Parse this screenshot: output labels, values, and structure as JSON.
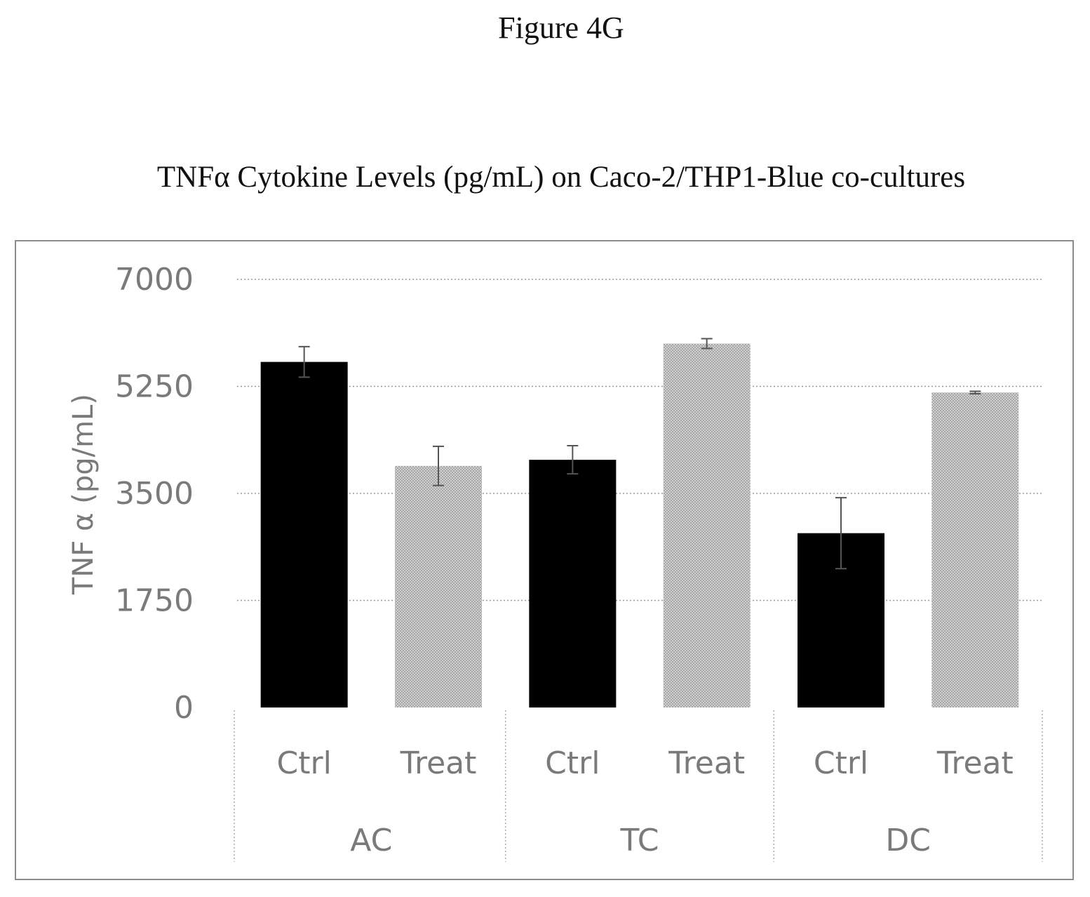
{
  "figure_label": "Figure 4G",
  "chart_data": {
    "type": "bar",
    "title": "TNFα Cytokine Levels (pg/mL) on Caco-2/THP1-Blue co-cultures",
    "xlabel": "",
    "ylabel": "TNF α (pg/mL)",
    "ylim": [
      0,
      7000
    ],
    "yticks": [
      0,
      1750,
      3500,
      5250,
      7000
    ],
    "grid": true,
    "legend": "none",
    "groups": [
      "AC",
      "TC",
      "DC"
    ],
    "categories": [
      "Ctrl",
      "Treat",
      "Ctrl",
      "Treat",
      "Ctrl",
      "Treat"
    ],
    "values": [
      5650,
      3950,
      4050,
      5950,
      2850,
      5150
    ],
    "errors": [
      250,
      320,
      230,
      80,
      580,
      20
    ],
    "colors": [
      "#000000",
      "#c8c8c8",
      "#000000",
      "#c8c8c8",
      "#000000",
      "#c8c8c8"
    ]
  }
}
